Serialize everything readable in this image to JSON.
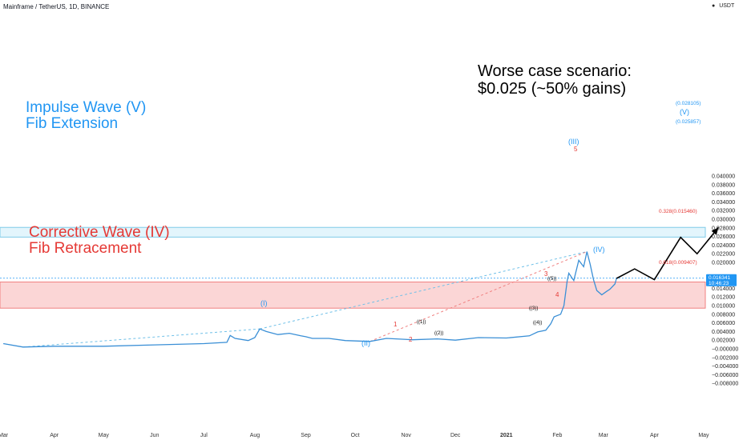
{
  "header": {
    "symbol_line": "Mainframe / TetherUS, 1D, BINANCE",
    "currency": "USDT"
  },
  "colors": {
    "price_line": "#3a8fd6",
    "blue_zone_fill": "#e3f5fc",
    "blue_zone_border": "#7fcbe8",
    "red_zone_fill": "#fbd6d6",
    "red_zone_border": "#f08080",
    "red_label": "#e53935",
    "blue_label": "#2196f3",
    "projection": "#000000",
    "price_badge": "#2196f3"
  },
  "annotations": {
    "worst_case_line1": "Worse case scenario:",
    "worst_case_line2": "$0.025 (~50% gains)",
    "impulse_line1": "Impulse Wave (V)",
    "impulse_line2": "Fib Extension",
    "corrective_line1": "Corrective Wave (IV)",
    "corrective_line2": "Fib Retracement"
  },
  "fib_levels": {
    "top_ext": "(0.028105)",
    "bottom_ext": "(0.025857)",
    "ret_0328": "0.328(0.015460)",
    "ret_0618": "0.618(0.009407)"
  },
  "price_badge": {
    "price": "0.016341",
    "countdown": "10:46:23"
  },
  "wave_labels": {
    "I": "(I)",
    "II": "(II)",
    "III": "(III)",
    "IV": "(IV)",
    "V": "(V)",
    "n1": "1",
    "n2": "2",
    "n3": "3",
    "n4": "4",
    "n5": "5",
    "s1": "((1))",
    "s2": "((2))",
    "s3": "((3))",
    "s4": "((4))",
    "s5": "((5))"
  },
  "chart_data": {
    "type": "line",
    "ylabel": "USDT",
    "ylim": [
      -0.0085,
      0.041
    ],
    "y_ticks": [
      "0.040000",
      "0.038000",
      "0.036000",
      "0.034000",
      "0.032000",
      "0.030000",
      "0.028000",
      "0.026000",
      "0.024000",
      "0.022000",
      "0.020000",
      "0.018000",
      "0.016000",
      "0.014000",
      "0.012000",
      "0.010000",
      "0.008000",
      "0.006000",
      "0.004000",
      "0.002000",
      "−0.000000",
      "−0.002000",
      "−0.004000",
      "−0.006000",
      "−0.008000"
    ],
    "x_ticks": [
      "Mar",
      "Apr",
      "May",
      "Jun",
      "Jul",
      "Aug",
      "Sep",
      "Oct",
      "Nov",
      "Dec",
      "2021",
      "Feb",
      "Mar",
      "Apr",
      "May"
    ],
    "series": [
      {
        "values": [
          [
            "2020-03-01",
            0.0012
          ],
          [
            "2020-03-13",
            0.0004
          ],
          [
            "2020-04-01",
            0.0006
          ],
          [
            "2020-05-01",
            0.0006
          ],
          [
            "2020-06-01",
            0.0009
          ],
          [
            "2020-07-01",
            0.0012
          ],
          [
            "2020-07-15",
            0.0015
          ],
          [
            "2020-07-17",
            0.0031
          ],
          [
            "2020-07-20",
            0.0024
          ],
          [
            "2020-07-28",
            0.0019
          ],
          [
            "2020-08-01",
            0.0026
          ],
          [
            "2020-08-04",
            0.0046
          ],
          [
            "2020-08-08",
            0.004
          ],
          [
            "2020-08-15",
            0.0033
          ],
          [
            "2020-08-22",
            0.0036
          ],
          [
            "2020-08-29",
            0.003
          ],
          [
            "2020-09-01",
            0.0028
          ],
          [
            "2020-09-05",
            0.0024
          ],
          [
            "2020-09-15",
            0.0024
          ],
          [
            "2020-09-25",
            0.0019
          ],
          [
            "2020-10-10",
            0.0017
          ],
          [
            "2020-10-20",
            0.0024
          ],
          [
            "2020-11-05",
            0.0021
          ],
          [
            "2020-11-20",
            0.0023
          ],
          [
            "2020-12-01",
            0.002
          ],
          [
            "2020-12-15",
            0.0026
          ],
          [
            "2021-01-01",
            0.0025
          ],
          [
            "2021-01-15",
            0.003
          ],
          [
            "2021-01-20",
            0.0039
          ],
          [
            "2021-01-25",
            0.0043
          ],
          [
            "2021-01-28",
            0.0058
          ],
          [
            "2021-01-30",
            0.0074
          ],
          [
            "2021-02-03",
            0.008
          ],
          [
            "2021-02-05",
            0.01
          ],
          [
            "2021-02-07",
            0.0158
          ],
          [
            "2021-02-08",
            0.0175
          ],
          [
            "2021-02-11",
            0.0158
          ],
          [
            "2021-02-14",
            0.0205
          ],
          [
            "2021-02-17",
            0.019
          ],
          [
            "2021-02-19",
            0.0225
          ],
          [
            "2021-02-21",
            0.0195
          ],
          [
            "2021-02-23",
            0.016
          ],
          [
            "2021-02-25",
            0.0135
          ],
          [
            "2021-02-28",
            0.0125
          ],
          [
            "2021-03-03",
            0.0133
          ],
          [
            "2021-03-05",
            0.0138
          ],
          [
            "2021-03-08",
            0.015
          ],
          [
            "2021-03-09",
            0.0163
          ]
        ]
      }
    ],
    "projection": [
      [
        "2021-03-09",
        0.0163
      ],
      [
        "2021-03-20",
        0.0185
      ],
      [
        "2021-04-01",
        0.016
      ],
      [
        "2021-04-17",
        0.0258
      ],
      [
        "2021-04-27",
        0.022
      ],
      [
        "2021-05-10",
        0.0281
      ]
    ],
    "fib_zones": [
      {
        "name": "Impulse Wave (V) Fib Extension",
        "low": 0.025857,
        "high": 0.028105
      },
      {
        "name": "Corrective Wave (IV) Fib Retracement",
        "low": 0.009407,
        "high": 0.01546
      }
    ],
    "last_price": 0.016341
  }
}
